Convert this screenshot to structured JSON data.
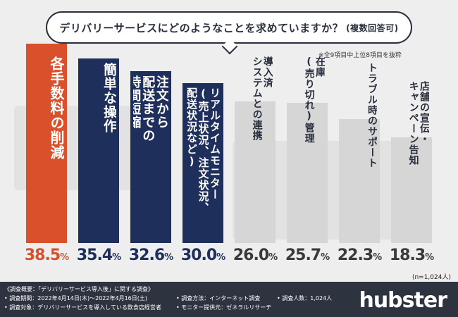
{
  "question": {
    "main": "デリバリーサービスにどのようなことを求めていますか？",
    "sub": "(複数回答可)"
  },
  "note_top": "※全9項目中上位8項目を抜粋",
  "sample_note": "(n=1,024人)",
  "colors": {
    "orange": "#d9502b",
    "navy": "#1f2f5c",
    "gray": "#d6d6d6",
    "pct_orange": "#d9502b",
    "pct_dark": "#1f2f5c",
    "pct_gray": "#3a3a3a"
  },
  "chart_data": {
    "type": "bar",
    "title": "デリバリーサービスにどのようなことを求めていますか？(複数回答可)",
    "categories": [
      "各手数料の削減",
      "簡単な操作",
      "注文から配送までの時間短縮",
      "リアルタイムモニター(売上状況、注文状況、配送状況など)",
      "導入済システムとの連携",
      "在庫(売り切れ)管理",
      "トラブル時のサポート",
      "店舗の宣伝・キャンペーン告知"
    ],
    "labels": [
      "各手数料の削減",
      "簡単な操作",
      "注文から\n配送までの\n時間短縮",
      "リアルタイムモニター\n(売上状況、注文状況、\n配送状況など)",
      "導入済\nシステムとの連携",
      "在庫\n(売り切れ)管理",
      "トラブル時のサポート",
      "店舗の宣伝・\nキャンペーン告知"
    ],
    "values": [
      38.5,
      35.4,
      32.6,
      30.0,
      26.0,
      25.7,
      22.3,
      18.3
    ],
    "value_labels": [
      "38.5",
      "35.4",
      "32.6",
      "30.0",
      "26.0",
      "25.7",
      "22.3",
      "18.3"
    ],
    "unit": "%",
    "color_groups": [
      "orange",
      "navy",
      "navy",
      "navy",
      "gray",
      "gray",
      "gray",
      "gray"
    ],
    "ylim": [
      0,
      40
    ]
  },
  "footer": {
    "survey_overview": "《調査概要：「デリバリーサービス導入後」に関する調査》",
    "period": "• 調査期間：2022年4月14日(木)〜2022年4月16日(土)",
    "target": "• 調査対象：デリバリーサービスを導入している飲食店経営者",
    "method": "• 調査方法：インターネット調査",
    "provider": "• モニター提供元：ゼネラルリサーチ",
    "count": "• 調査人数：1,024人",
    "logo": "hubster"
  }
}
